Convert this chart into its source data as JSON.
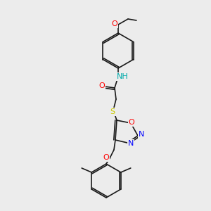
{
  "bg_color": "#ececec",
  "bond_color": "#1a1a1a",
  "atom_colors": {
    "O": "#ff0000",
    "N": "#0000ff",
    "S": "#cccc00",
    "NH": "#00aaaa",
    "C": "#1a1a1a"
  },
  "font_size": 7,
  "lw": 1.2
}
